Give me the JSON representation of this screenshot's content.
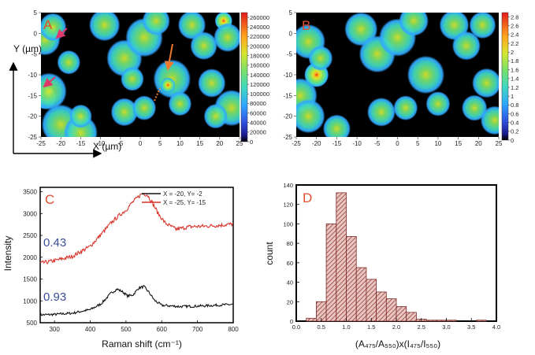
{
  "chart_data": [
    {
      "id": "A",
      "type": "heatmap",
      "panel_label": "A",
      "xlabel": "X (µm)",
      "ylabel": "Y (µm)",
      "xlim": [
        -25,
        25
      ],
      "ylim": [
        -25,
        5
      ],
      "xticks": [
        "-25",
        "-20",
        "-15",
        "-10",
        "-5",
        "0",
        "5",
        "10",
        "15",
        "20",
        "25"
      ],
      "yticks": [
        "5",
        "0",
        "-5",
        "-10",
        "-15",
        "-20",
        "-25"
      ],
      "colorbar": {
        "min": 0,
        "max": 270000,
        "ticks": [
          "260000",
          "240000",
          "220000",
          "200000",
          "180000",
          "160000",
          "140000",
          "120000",
          "100000",
          "80000",
          "60000",
          "40000",
          "20000",
          "0"
        ]
      },
      "blobs": [
        {
          "x": -24,
          "y": -15.5,
          "r": 2.8,
          "v": 0.95
        },
        {
          "x": -23,
          "y": -14,
          "r": 4.5,
          "v": 0.5
        },
        {
          "x": -24,
          "y": -1.5,
          "r": 3.5,
          "v": 0.7
        },
        {
          "x": -22,
          "y": 1.5,
          "r": 3.5,
          "v": 0.45
        },
        {
          "x": -18,
          "y": -7,
          "r": 3.0,
          "v": 0.45
        },
        {
          "x": -20,
          "y": -22,
          "r": 5,
          "v": 0.45
        },
        {
          "x": -15,
          "y": -24,
          "r": 4.5,
          "v": 0.4
        },
        {
          "x": -15,
          "y": -20,
          "r": 3,
          "v": 0.4
        },
        {
          "x": -9,
          "y": 2,
          "r": 4.0,
          "v": 0.45
        },
        {
          "x": -4,
          "y": -6,
          "r": 4.5,
          "v": 0.5
        },
        {
          "x": -2,
          "y": -11,
          "r": 3.0,
          "v": 0.45
        },
        {
          "x": 1,
          "y": -1,
          "r": 4.5,
          "v": 0.6
        },
        {
          "x": 4,
          "y": 3,
          "r": 3.5,
          "v": 0.5
        },
        {
          "x": 8,
          "y": -11,
          "r": 4.5,
          "v": 0.6
        },
        {
          "x": 7,
          "y": -12.5,
          "r": 1.8,
          "v": 0.88
        },
        {
          "x": -4,
          "y": -19,
          "r": 3.5,
          "v": 0.45
        },
        {
          "x": 1,
          "y": -18,
          "r": 3.0,
          "v": 0.5
        },
        {
          "x": 10,
          "y": -17,
          "r": 3.0,
          "v": 0.45
        },
        {
          "x": 13,
          "y": 2,
          "r": 3.5,
          "v": 0.5
        },
        {
          "x": 16,
          "y": -3,
          "r": 3.5,
          "v": 0.45
        },
        {
          "x": 21,
          "y": 3,
          "r": 2.2,
          "v": 0.95
        },
        {
          "x": 22,
          "y": -1,
          "r": 3.5,
          "v": 0.5
        },
        {
          "x": 18,
          "y": -12,
          "r": 3.5,
          "v": 0.5
        },
        {
          "x": 23,
          "y": -18,
          "r": 4.5,
          "v": 0.45
        },
        {
          "x": 19,
          "y": -20,
          "r": 3.0,
          "v": 0.5
        }
      ]
    },
    {
      "id": "B",
      "type": "heatmap",
      "panel_label": "B",
      "xlim": [
        -25,
        25
      ],
      "ylim": [
        -25,
        5
      ],
      "xticks": [
        "-25",
        "-20",
        "-15",
        "-10",
        "-5",
        "0",
        "5",
        "10",
        "15",
        "20",
        "25"
      ],
      "yticks": [
        "5",
        "0",
        "-5",
        "-10",
        "-15",
        "-20",
        "-25"
      ],
      "colorbar": {
        "min": 0,
        "max": 2.9,
        "ticks": [
          "2.8",
          "2.6",
          "2.4",
          "2.2",
          "2",
          "1.8",
          "1.6",
          "1.4",
          "1.2",
          "1",
          "0.8",
          "0.6",
          "0.4",
          "0.2",
          "0"
        ]
      },
      "blobs": [
        {
          "x": -24,
          "y": -15,
          "r": 4,
          "v": 0.6
        },
        {
          "x": -22,
          "y": -20,
          "r": 4,
          "v": 0.55
        },
        {
          "x": -22,
          "y": -2,
          "r": 4,
          "v": 0.6
        },
        {
          "x": -20,
          "y": -10,
          "r": 3.0,
          "v": 0.85
        },
        {
          "x": -19,
          "y": -6,
          "r": 3.0,
          "v": 0.5
        },
        {
          "x": -15,
          "y": -23,
          "r": 3.5,
          "v": 0.45
        },
        {
          "x": -9,
          "y": 1,
          "r": 4,
          "v": 0.55
        },
        {
          "x": -5,
          "y": -5,
          "r": 4.5,
          "v": 0.5
        },
        {
          "x": 0,
          "y": -1,
          "r": 4.5,
          "v": 0.55
        },
        {
          "x": 4,
          "y": 3,
          "r": 3.5,
          "v": 0.6
        },
        {
          "x": 7,
          "y": -10,
          "r": 4.5,
          "v": 0.55
        },
        {
          "x": 2,
          "y": -18,
          "r": 3.0,
          "v": 0.5
        },
        {
          "x": -4,
          "y": -19,
          "r": 3.5,
          "v": 0.5
        },
        {
          "x": 10,
          "y": -17,
          "r": 3.0,
          "v": 0.5
        },
        {
          "x": 14,
          "y": 2,
          "r": 3.5,
          "v": 0.6
        },
        {
          "x": 17,
          "y": -3,
          "r": 3.5,
          "v": 0.5
        },
        {
          "x": 21,
          "y": 2,
          "r": 3.0,
          "v": 0.7
        },
        {
          "x": 22,
          "y": -12,
          "r": 3.5,
          "v": 0.55
        },
        {
          "x": 19,
          "y": -18,
          "r": 3.0,
          "v": 0.6
        },
        {
          "x": 24,
          "y": -21,
          "r": 3.5,
          "v": 0.5
        }
      ]
    },
    {
      "id": "C",
      "type": "line",
      "panel_label": "C",
      "xlabel": "Raman shift (cm⁻¹)",
      "ylabel": "Intensity",
      "xlim": [
        260,
        800
      ],
      "ylim": [
        500,
        3600
      ],
      "xticks": [
        300,
        400,
        500,
        600,
        700,
        800
      ],
      "yticks": [
        500,
        1000,
        1500,
        2000,
        2500,
        3000,
        3500
      ],
      "annotations": [
        "0.43",
        "0.93"
      ],
      "series": [
        {
          "name": "X = -20, Y= -2",
          "color": "#111111",
          "x": [
            260,
            300,
            350,
            400,
            430,
            460,
            475,
            490,
            505,
            520,
            535,
            550,
            565,
            580,
            600,
            650,
            700,
            750,
            800
          ],
          "y": [
            680,
            690,
            720,
            800,
            930,
            1190,
            1270,
            1210,
            1110,
            1140,
            1290,
            1330,
            1190,
            1010,
            900,
            870,
            880,
            900,
            920
          ]
        },
        {
          "name": "X = -25, Y= -15",
          "color": "#d8342a",
          "x": [
            260,
            300,
            350,
            400,
            430,
            460,
            480,
            500,
            515,
            530,
            545,
            560,
            575,
            590,
            610,
            640,
            680,
            720,
            760,
            800
          ],
          "y": [
            1860,
            1920,
            2020,
            2250,
            2520,
            2800,
            2950,
            3080,
            3230,
            3350,
            3460,
            3430,
            3230,
            3000,
            2780,
            2640,
            2700,
            2710,
            2730,
            2760
          ]
        }
      ]
    },
    {
      "id": "D",
      "type": "bar",
      "panel_label": "D",
      "xlabel": "(A₄₇₅/A₅₅₀)x(I₄₇₅/I₅₅₀)",
      "ylabel": "count",
      "xlim": [
        0,
        4
      ],
      "ylim": [
        0,
        140
      ],
      "xticks": [
        "0.0",
        "0.5",
        "1.0",
        "1.5",
        "2.0",
        "2.5",
        "3.0",
        "3.5",
        "4.0"
      ],
      "yticks": [
        0,
        20,
        40,
        60,
        80,
        100,
        120,
        140
      ],
      "bin_width": 0.2,
      "bin_starts": [
        0.2,
        0.4,
        0.6,
        0.8,
        1.0,
        1.2,
        1.4,
        1.6,
        1.8,
        2.0,
        2.2,
        2.4,
        2.6,
        2.8,
        3.0,
        3.2,
        3.4,
        3.6,
        3.8
      ],
      "values": [
        3,
        20,
        100,
        132,
        87,
        55,
        43,
        30,
        23,
        15,
        9,
        2,
        1,
        1,
        1,
        0,
        0,
        1,
        0
      ]
    }
  ]
}
